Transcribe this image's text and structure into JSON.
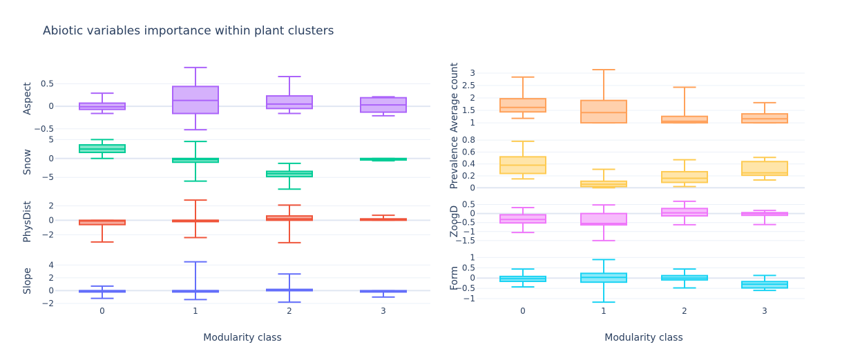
{
  "chart_data": {
    "type": "box",
    "title": "Abiotic variables importance within plant clusters",
    "categories": [
      "0",
      "1",
      "2",
      "3"
    ],
    "panels": [
      {
        "column": "left",
        "ylabel": "Aspect",
        "color": "#ab63fa",
        "fill": "#d5b1fc",
        "ylim": [
          -0.58,
          0.92
        ],
        "yticks": [
          -0.5,
          0,
          0.5
        ],
        "ytick_labels": [
          "−0.5",
          "0",
          "0.5"
        ],
        "boxes": [
          {
            "category": "0",
            "min": -0.16,
            "q1": -0.07,
            "median": -0.01,
            "q3": 0.07,
            "max": 0.29
          },
          {
            "category": "1",
            "min": -0.52,
            "q1": -0.16,
            "median": 0.13,
            "q3": 0.44,
            "max": 0.86
          },
          {
            "category": "2",
            "min": -0.16,
            "q1": -0.05,
            "median": 0.05,
            "q3": 0.23,
            "max": 0.66
          },
          {
            "category": "3",
            "min": -0.21,
            "q1": -0.13,
            "median": 0.03,
            "q3": 0.19,
            "max": 0.21
          }
        ]
      },
      {
        "column": "left",
        "ylabel": "Snow",
        "color": "#00cc96",
        "fill": "#80e6ca",
        "ylim": [
          -7.7,
          5.8
        ],
        "yticks": [
          -5,
          0,
          5
        ],
        "ytick_labels": [
          "−5",
          "0",
          "5"
        ],
        "boxes": [
          {
            "category": "0",
            "min": 0.0,
            "q1": 1.6,
            "median": 2.5,
            "q3": 3.6,
            "max": 5.0
          },
          {
            "category": "1",
            "min": -6.0,
            "q1": -1.0,
            "median": -0.3,
            "q3": 0.0,
            "max": 4.5
          },
          {
            "category": "2",
            "min": -8.1,
            "q1": -4.8,
            "median": -4.0,
            "q3": -3.4,
            "max": -1.3
          },
          {
            "category": "3",
            "min": -0.6,
            "q1": -0.4,
            "median": -0.2,
            "q3": 0.0,
            "max": 0.0
          }
        ]
      },
      {
        "column": "left",
        "ylabel": "PhysDist",
        "color": "#ef553b",
        "fill": "#f7aa9d",
        "ylim": [
          -3.4,
          3.0
        ],
        "yticks": [
          -2,
          0,
          2
        ],
        "ytick_labels": [
          "−2",
          "0",
          "2"
        ],
        "boxes": [
          {
            "category": "0",
            "min": -3.0,
            "q1": -0.6,
            "median": -0.1,
            "q3": 0.0,
            "max": 0.0
          },
          {
            "category": "1",
            "min": -2.4,
            "q1": 0.0,
            "median": 0.0,
            "q3": 0.0,
            "max": 2.8
          },
          {
            "category": "2",
            "min": -3.1,
            "q1": 0.0,
            "median": 0.2,
            "q3": 0.6,
            "max": 2.1
          },
          {
            "category": "3",
            "min": 0.0,
            "q1": 0.0,
            "median": 0.1,
            "q3": 0.2,
            "max": 0.7
          }
        ]
      },
      {
        "column": "left",
        "ylabel": "Slope",
        "color": "#636efa",
        "fill": "#b1b6fc",
        "ylim": [
          -2.0,
          5.0
        ],
        "yticks": [
          -2,
          0,
          2,
          4
        ],
        "ytick_labels": [
          "−2",
          "0",
          "2",
          "4"
        ],
        "boxes": [
          {
            "category": "0",
            "min": -1.2,
            "q1": 0.0,
            "median": 0.0,
            "q3": 0.0,
            "max": 0.7
          },
          {
            "category": "1",
            "min": -1.4,
            "q1": 0.0,
            "median": 0.0,
            "q3": 0.0,
            "max": 4.5
          },
          {
            "category": "2",
            "min": -1.8,
            "q1": 0.0,
            "median": 0.1,
            "q3": 0.2,
            "max": 2.6
          },
          {
            "category": "3",
            "min": -1.0,
            "q1": -0.2,
            "median": -0.1,
            "q3": 0.0,
            "max": 0.0
          }
        ]
      },
      {
        "column": "right",
        "ylabel": "Average count",
        "color": "#ffa15a",
        "fill": "#ffd0ac",
        "ylim": [
          0.78,
          3.25
        ],
        "yticks": [
          1,
          1.5,
          2,
          2.5,
          3
        ],
        "ytick_labels": [
          "1",
          "1.5",
          "2",
          "2.5",
          "3"
        ],
        "boxes": [
          {
            "category": "0",
            "min": 1.18,
            "q1": 1.44,
            "median": 1.62,
            "q3": 1.97,
            "max": 2.84
          },
          {
            "category": "1",
            "min": 1.0,
            "q1": 1.0,
            "median": 1.41,
            "q3": 1.9,
            "max": 3.14
          },
          {
            "category": "2",
            "min": 1.0,
            "q1": 1.0,
            "median": 1.06,
            "q3": 1.26,
            "max": 2.43
          },
          {
            "category": "3",
            "min": 1.0,
            "q1": 1.0,
            "median": 1.16,
            "q3": 1.36,
            "max": 1.81
          }
        ]
      },
      {
        "column": "right",
        "ylabel": "Prevalence",
        "color": "#fecb52",
        "fill": "#ffe5a9",
        "ylim": [
          -0.02,
          0.86
        ],
        "yticks": [
          0,
          0.2,
          0.4,
          0.6,
          0.8
        ],
        "ytick_labels": [
          "0",
          "0.2",
          "0.4",
          "0.6",
          "0.8"
        ],
        "boxes": [
          {
            "category": "0",
            "min": 0.15,
            "q1": 0.24,
            "median": 0.38,
            "q3": 0.52,
            "max": 0.78
          },
          {
            "category": "1",
            "min": 0.0,
            "q1": 0.02,
            "median": 0.06,
            "q3": 0.11,
            "max": 0.31
          },
          {
            "category": "2",
            "min": 0.02,
            "q1": 0.09,
            "median": 0.16,
            "q3": 0.27,
            "max": 0.47
          },
          {
            "category": "3",
            "min": 0.13,
            "q1": 0.21,
            "median": 0.25,
            "q3": 0.44,
            "max": 0.51
          }
        ]
      },
      {
        "column": "right",
        "ylabel": "ZoogD",
        "color": "#ef77fa",
        "fill": "#f7bbfc",
        "ylim": [
          -1.62,
          0.75
        ],
        "yticks": [
          -1.5,
          -1,
          -0.5,
          0,
          0.5
        ],
        "ytick_labels": [
          "−1.5",
          "−1",
          "−0.5",
          "0",
          "0.5"
        ],
        "boxes": [
          {
            "category": "0",
            "min": -1.05,
            "q1": -0.52,
            "median": -0.33,
            "q3": -0.07,
            "max": 0.33
          },
          {
            "category": "1",
            "min": -1.5,
            "q1": -0.63,
            "median": -0.55,
            "q3": 0.0,
            "max": 0.48
          },
          {
            "category": "2",
            "min": -0.62,
            "q1": -0.13,
            "median": 0.04,
            "q3": 0.28,
            "max": 0.68
          },
          {
            "category": "3",
            "min": -0.61,
            "q1": -0.1,
            "median": 0.0,
            "q3": 0.05,
            "max": 0.17
          }
        ]
      },
      {
        "column": "right",
        "ylabel": "Form",
        "color": "#19d3f3",
        "fill": "#8ce9f9",
        "ylim": [
          -1.1,
          1.08
        ],
        "yticks": [
          -1,
          -0.5,
          0,
          0.5,
          1
        ],
        "ytick_labels": [
          "−1",
          "−0.5",
          "0",
          "0.5",
          "1"
        ],
        "boxes": [
          {
            "category": "0",
            "min": -0.43,
            "q1": -0.16,
            "median": -0.03,
            "q3": 0.08,
            "max": 0.44
          },
          {
            "category": "1",
            "min": -1.17,
            "q1": -0.2,
            "median": 0.03,
            "q3": 0.23,
            "max": 0.9
          },
          {
            "category": "2",
            "min": -0.48,
            "q1": -0.09,
            "median": 0.0,
            "q3": 0.12,
            "max": 0.44
          },
          {
            "category": "3",
            "min": -0.6,
            "q1": -0.48,
            "median": -0.3,
            "q3": -0.17,
            "max": 0.13
          }
        ]
      }
    ],
    "xlabel_left": "Modularity class",
    "xlabel_right": "Modularity class",
    "colors": {
      "grid": "#ebf0f8",
      "zeroline": "#e0e6f2",
      "text": "#2a3f5f"
    }
  }
}
